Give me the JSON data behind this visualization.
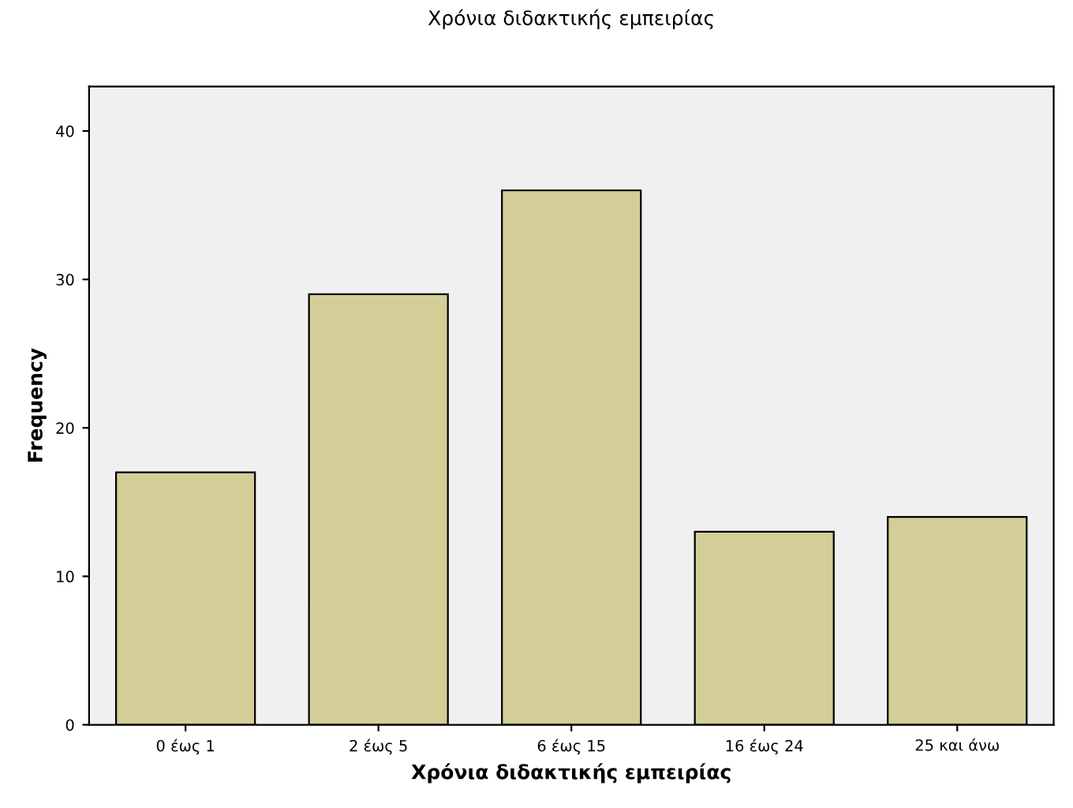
{
  "chart_data": {
    "type": "bar",
    "title": "Χρόνια διδακτικής εμπειρίας",
    "xlabel": "Χρόνια διδακτικής εμπειρίας",
    "ylabel": "Frequency",
    "categories": [
      "0 έως 1",
      "2 έως 5",
      "6 έως 15",
      "16 έως 24",
      "25 και άνω"
    ],
    "values": [
      17,
      29,
      36,
      13,
      14
    ],
    "color": "#d3ce97",
    "ylim": [
      0,
      43
    ],
    "yticks": [
      0,
      10,
      20,
      30,
      40
    ],
    "grid": false,
    "legend": false
  }
}
